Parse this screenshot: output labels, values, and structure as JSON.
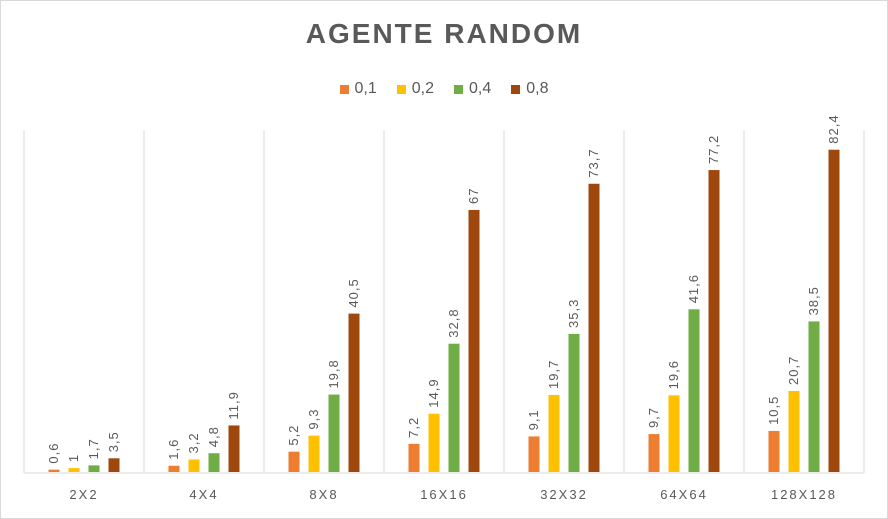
{
  "chart_data": {
    "type": "bar",
    "title": "AGENTE RANDOM",
    "categories": [
      "2X2",
      "4X4",
      "8X8",
      "16X16",
      "32X32",
      "64X64",
      "128X128"
    ],
    "series": [
      {
        "name": "0,1",
        "color": "#ed7d31",
        "values": [
          0.6,
          1.6,
          5.2,
          7.2,
          9.1,
          9.7,
          10.5
        ],
        "labels": [
          "0,6",
          "1,6",
          "5,2",
          "7,2",
          "9,1",
          "9,7",
          "10,5"
        ]
      },
      {
        "name": "0,2",
        "color": "#ffc000",
        "values": [
          1,
          3.2,
          9.3,
          14.9,
          19.7,
          19.6,
          20.7
        ],
        "labels": [
          "1",
          "3,2",
          "9,3",
          "14,9",
          "19,7",
          "19,6",
          "20,7"
        ]
      },
      {
        "name": "0,4",
        "color": "#70ad47",
        "values": [
          1.7,
          4.8,
          19.8,
          32.8,
          35.3,
          41.6,
          38.5
        ],
        "labels": [
          "1,7",
          "4,8",
          "19,8",
          "32,8",
          "35,3",
          "41,6",
          "38,5"
        ]
      },
      {
        "name": "0,8",
        "color": "#9e480e",
        "values": [
          3.5,
          11.9,
          40.5,
          67,
          73.7,
          77.2,
          82.4
        ],
        "labels": [
          "3,5",
          "11,9",
          "40,5",
          "67",
          "73,7",
          "77,2",
          "82,4"
        ]
      }
    ],
    "xlabel": "",
    "ylabel": "",
    "ylim": [
      0,
      90
    ],
    "grid": "vertical category separators",
    "legend_position": "top"
  }
}
